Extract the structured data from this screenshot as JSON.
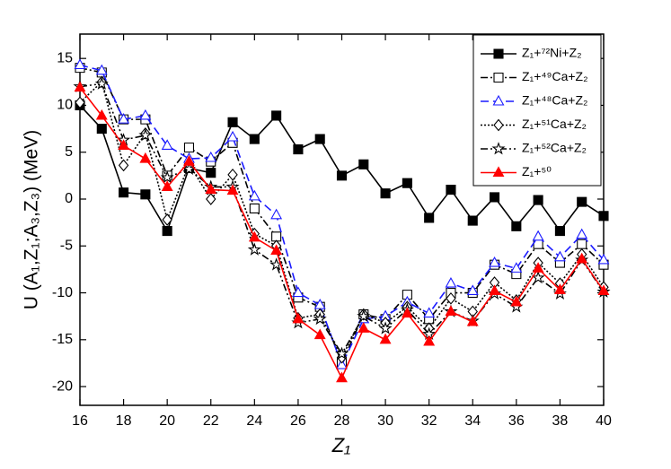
{
  "chart_data": {
    "type": "line",
    "x_label": "Z₁",
    "y_label": "U (A₁,Z₁;A₃,Z₃) (MeV)",
    "x": [
      16,
      17,
      18,
      19,
      20,
      21,
      22,
      23,
      24,
      25,
      26,
      27,
      28,
      29,
      30,
      31,
      32,
      33,
      34,
      35,
      36,
      37,
      38,
      39,
      40
    ],
    "xlim": [
      16,
      40
    ],
    "xticks": [
      16,
      18,
      20,
      22,
      24,
      26,
      28,
      30,
      32,
      34,
      36,
      38,
      40
    ],
    "ylim": [
      -22,
      17.6
    ],
    "yticks": [
      -20,
      -15,
      -10,
      -5,
      0,
      5,
      10,
      15
    ],
    "legend": "upper right",
    "series": [
      {
        "name": "Z₁+⁷²Ni+Z₂",
        "color": "#000000",
        "marker": "square",
        "filled": true,
        "dash": "none",
        "values": [
          10.0,
          7.5,
          0.7,
          0.5,
          -3.4,
          3.3,
          2.8,
          8.2,
          6.4,
          8.9,
          5.3,
          6.4,
          2.5,
          3.7,
          0.6,
          1.7,
          -2.0,
          1.0,
          -2.3,
          0.2,
          -2.9,
          -0.1,
          -3.4,
          -0.3,
          -1.8
        ]
      },
      {
        "name": "Z₁+⁴⁹Ca+Z₂",
        "color": "#000000",
        "marker": "square",
        "filled": false,
        "dash": "8,3,2,3",
        "values": [
          14.0,
          13.5,
          8.5,
          8.5,
          2.5,
          5.5,
          4.0,
          6.0,
          -1.0,
          -4.0,
          -10.5,
          -11.5,
          -17.5,
          -12.3,
          -12.8,
          -10.2,
          -12.8,
          -10.0,
          -10.0,
          -7.0,
          -8.0,
          -4.8,
          -6.8,
          -4.8,
          -7.0
        ]
      },
      {
        "name": "Z₁+⁴⁸Ca+Z₂",
        "color": "#1a1aff",
        "marker": "triangle",
        "filled": false,
        "dash": "9,5",
        "values": [
          14.3,
          13.7,
          8.5,
          8.9,
          5.7,
          4.3,
          4.4,
          6.6,
          0.3,
          -1.7,
          -10.0,
          -11.3,
          -17.7,
          -12.8,
          -12.5,
          -11.0,
          -12.2,
          -9.0,
          -9.8,
          -6.8,
          -7.4,
          -4.0,
          -6.2,
          -3.8,
          -6.5
        ]
      },
      {
        "name": "Z₁+⁵¹Ca+Z₂",
        "color": "#000000",
        "marker": "diamond",
        "filled": false,
        "dash": "2,2",
        "values": [
          10.3,
          12.5,
          3.6,
          7.0,
          -2.2,
          3.7,
          0.0,
          2.6,
          -3.7,
          -5.0,
          -12.7,
          -12.3,
          -16.9,
          -12.3,
          -13.2,
          -11.5,
          -13.8,
          -10.6,
          -12.0,
          -8.9,
          -10.8,
          -6.8,
          -9.0,
          -5.9,
          -9.4
        ]
      },
      {
        "name": "Z₁+⁵²Ca+Z₂",
        "color": "#000000",
        "marker": "star",
        "filled": false,
        "dash": "8,3,2,3,2,3",
        "values": [
          12.0,
          12.3,
          6.3,
          6.8,
          2.3,
          3.2,
          1.3,
          1.3,
          -5.4,
          -7.0,
          -13.2,
          -12.8,
          -16.5,
          -12.5,
          -13.8,
          -11.8,
          -14.4,
          -12.0,
          -13.0,
          -10.1,
          -11.5,
          -8.4,
          -10.1,
          -6.5,
          -9.9
        ]
      },
      {
        "name": "Z₁+⁵⁰",
        "color": "#ff0000",
        "marker": "triangle",
        "filled": true,
        "dash": "none",
        "values": [
          11.9,
          8.9,
          5.7,
          4.3,
          1.3,
          4.0,
          1.0,
          0.9,
          -4.1,
          -5.5,
          -12.8,
          -14.5,
          -19.1,
          -13.8,
          -15.0,
          -12.2,
          -15.2,
          -12.0,
          -13.1,
          -9.8,
          -11.0,
          -7.4,
          -9.7,
          -6.4,
          -9.8
        ]
      }
    ]
  }
}
